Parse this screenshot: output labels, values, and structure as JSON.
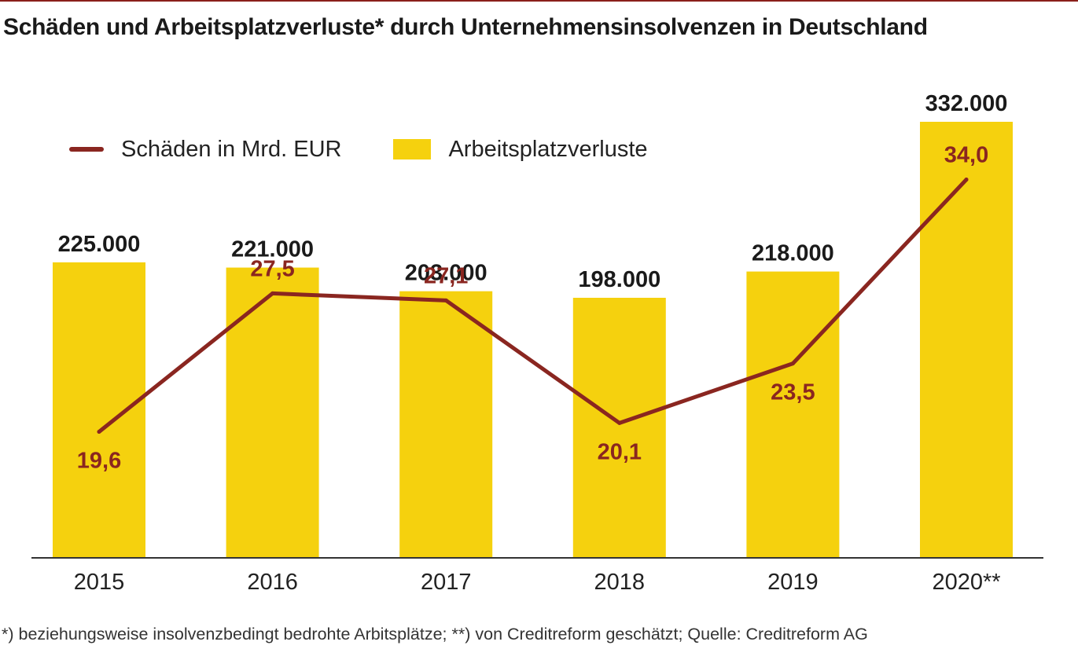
{
  "title": "Schäden und Arbeitsplatzverluste* durch Unternehmensinsolvenzen in Deutschland",
  "footnote": "*) beziehungsweise insolvenzbedingt bedrohte Arbitsplätze; **) von Creditreform geschätzt; Quelle: Creditreform AG",
  "legend": {
    "line_label": "Schäden in Mrd. EUR",
    "bar_label": "Arbeitsplatzverluste"
  },
  "colors": {
    "bar": "#f5d10e",
    "line": "#8a2620",
    "axis": "#333333",
    "top_rule": "#8a1f1a"
  },
  "chart_data": {
    "type": "bar",
    "categories": [
      "2015",
      "2016",
      "2017",
      "2018",
      "2019",
      "2020**"
    ],
    "series": [
      {
        "name": "Arbeitsplatzverluste",
        "type": "bar",
        "values": [
          225000,
          221000,
          203000,
          198000,
          218000,
          332000
        ],
        "labels": [
          "225.000",
          "221.000",
          "203.000",
          "198.000",
          "218.000",
          "332.000"
        ]
      },
      {
        "name": "Schäden in Mrd. EUR",
        "type": "line",
        "values": [
          19.6,
          27.5,
          27.1,
          20.1,
          23.5,
          34.0
        ],
        "labels": [
          "19,6",
          "27,5",
          "27,1",
          "20,1",
          "23,5",
          "34,0"
        ]
      }
    ],
    "bar_ylim": [
      0,
      332000
    ],
    "line_ylim": [
      12.4,
      37.3
    ],
    "grid": false,
    "legend_position": "top-left"
  }
}
